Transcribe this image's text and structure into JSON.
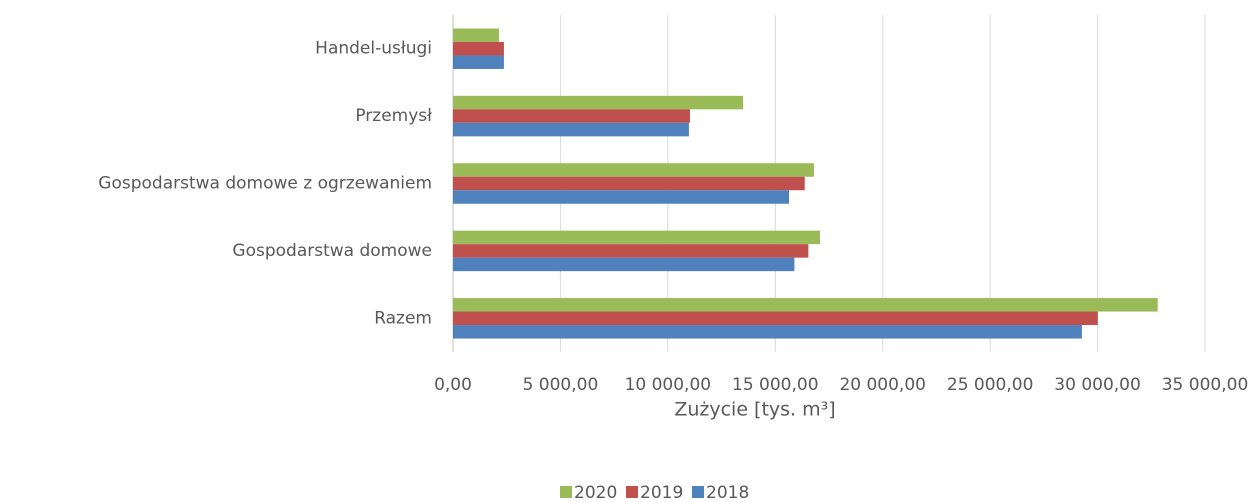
{
  "chart_data": {
    "type": "barh",
    "categories": [
      "Handel-usługi",
      "Przemysł",
      "Gospodarstwa domowe z ogrzewaniem",
      "Gospodarstwa domowe",
      "Razem"
    ],
    "series": [
      {
        "name": "2020",
        "color": "#9bbb59",
        "values": [
          2140,
          13500,
          16800,
          17080,
          32800
        ]
      },
      {
        "name": "2019",
        "color": "#c0504d",
        "values": [
          2370,
          11030,
          16370,
          16540,
          30010
        ]
      },
      {
        "name": "2018",
        "color": "#4f81bd",
        "values": [
          2370,
          10980,
          15640,
          15890,
          29270
        ]
      }
    ],
    "xlabel": "Zużycie [tys. m³]",
    "xlim": [
      0,
      35000
    ],
    "xticks": [
      {
        "value": 0,
        "label": "0,00"
      },
      {
        "value": 5000,
        "label": "5 000,00"
      },
      {
        "value": 10000,
        "label": "10 000,00"
      },
      {
        "value": 15000,
        "label": "15 000,00"
      },
      {
        "value": 20000,
        "label": "20 000,00"
      },
      {
        "value": 25000,
        "label": "25 000,00"
      },
      {
        "value": 30000,
        "label": "30 000,00"
      },
      {
        "value": 35000,
        "label": "35 000,00"
      }
    ],
    "grid": true,
    "legend": "bottom"
  }
}
